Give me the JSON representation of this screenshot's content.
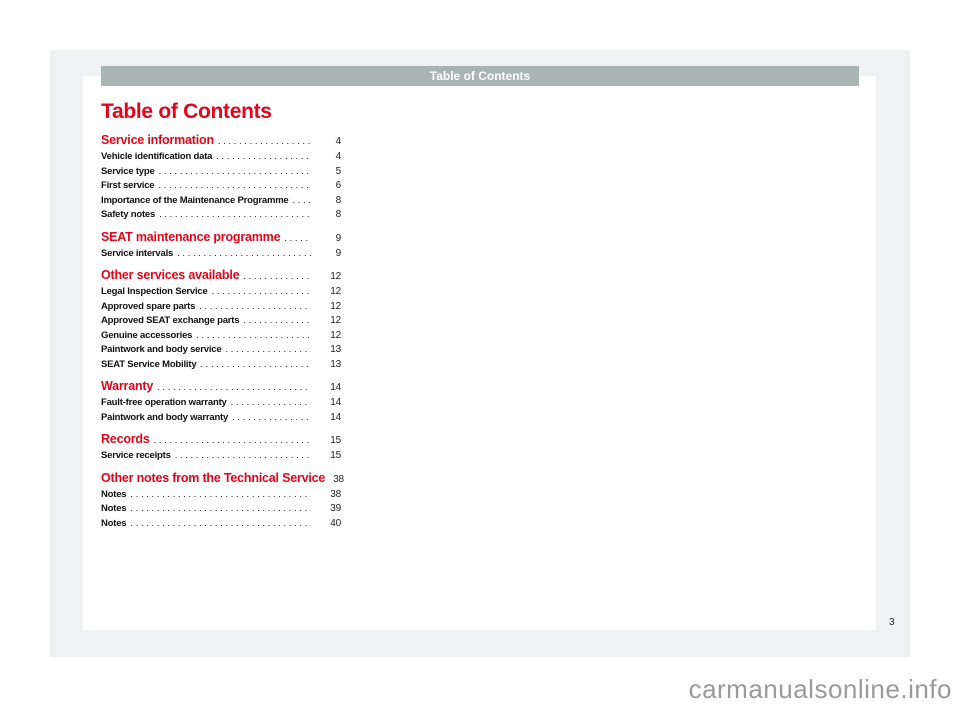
{
  "header": {
    "running_title": "Table of Contents"
  },
  "title": "Table of Contents",
  "toc": [
    {
      "type": "section",
      "label": "Service information",
      "page": "4"
    },
    {
      "type": "item",
      "label": "Vehicle identification data",
      "page": "4"
    },
    {
      "type": "item",
      "label": "Service type",
      "page": "5"
    },
    {
      "type": "item",
      "label": "First service",
      "page": "6"
    },
    {
      "type": "item",
      "label": "Importance of the Maintenance Programme",
      "page": "8"
    },
    {
      "type": "item",
      "label": "Safety notes",
      "page": "8"
    },
    {
      "type": "section",
      "label": "SEAT maintenance programme",
      "page": "9"
    },
    {
      "type": "item",
      "label": "Service intervals",
      "page": "9"
    },
    {
      "type": "section",
      "label": "Other services available",
      "page": "12"
    },
    {
      "type": "item",
      "label": "Legal Inspection Service",
      "page": "12"
    },
    {
      "type": "item",
      "label": "Approved spare parts",
      "page": "12"
    },
    {
      "type": "item",
      "label": "Approved SEAT exchange parts",
      "page": "12"
    },
    {
      "type": "item",
      "label": "Genuine accessories",
      "page": "12"
    },
    {
      "type": "item",
      "label": "Paintwork and body service",
      "page": "13"
    },
    {
      "type": "item",
      "label": "SEAT Service Mobility",
      "page": "13"
    },
    {
      "type": "section",
      "label": "Warranty",
      "page": "14"
    },
    {
      "type": "item",
      "label": "Fault-free operation warranty",
      "page": "14"
    },
    {
      "type": "item",
      "label": "Paintwork and body warranty",
      "page": "14"
    },
    {
      "type": "section",
      "label": "Records",
      "page": "15"
    },
    {
      "type": "item",
      "label": "Service receipts",
      "page": "15"
    },
    {
      "type": "section",
      "label": "Other notes from the Technical Service",
      "page": "38"
    },
    {
      "type": "item",
      "label": "Notes",
      "page": "38"
    },
    {
      "type": "item",
      "label": "Notes",
      "page": "39"
    },
    {
      "type": "item",
      "label": "Notes",
      "page": "40"
    }
  ],
  "page_number": "3",
  "watermark": "carmanualsonline.info",
  "colors": {
    "accent": "#e3051b",
    "header_bar": "#a9b4b3",
    "frame": "#eff1f2"
  }
}
